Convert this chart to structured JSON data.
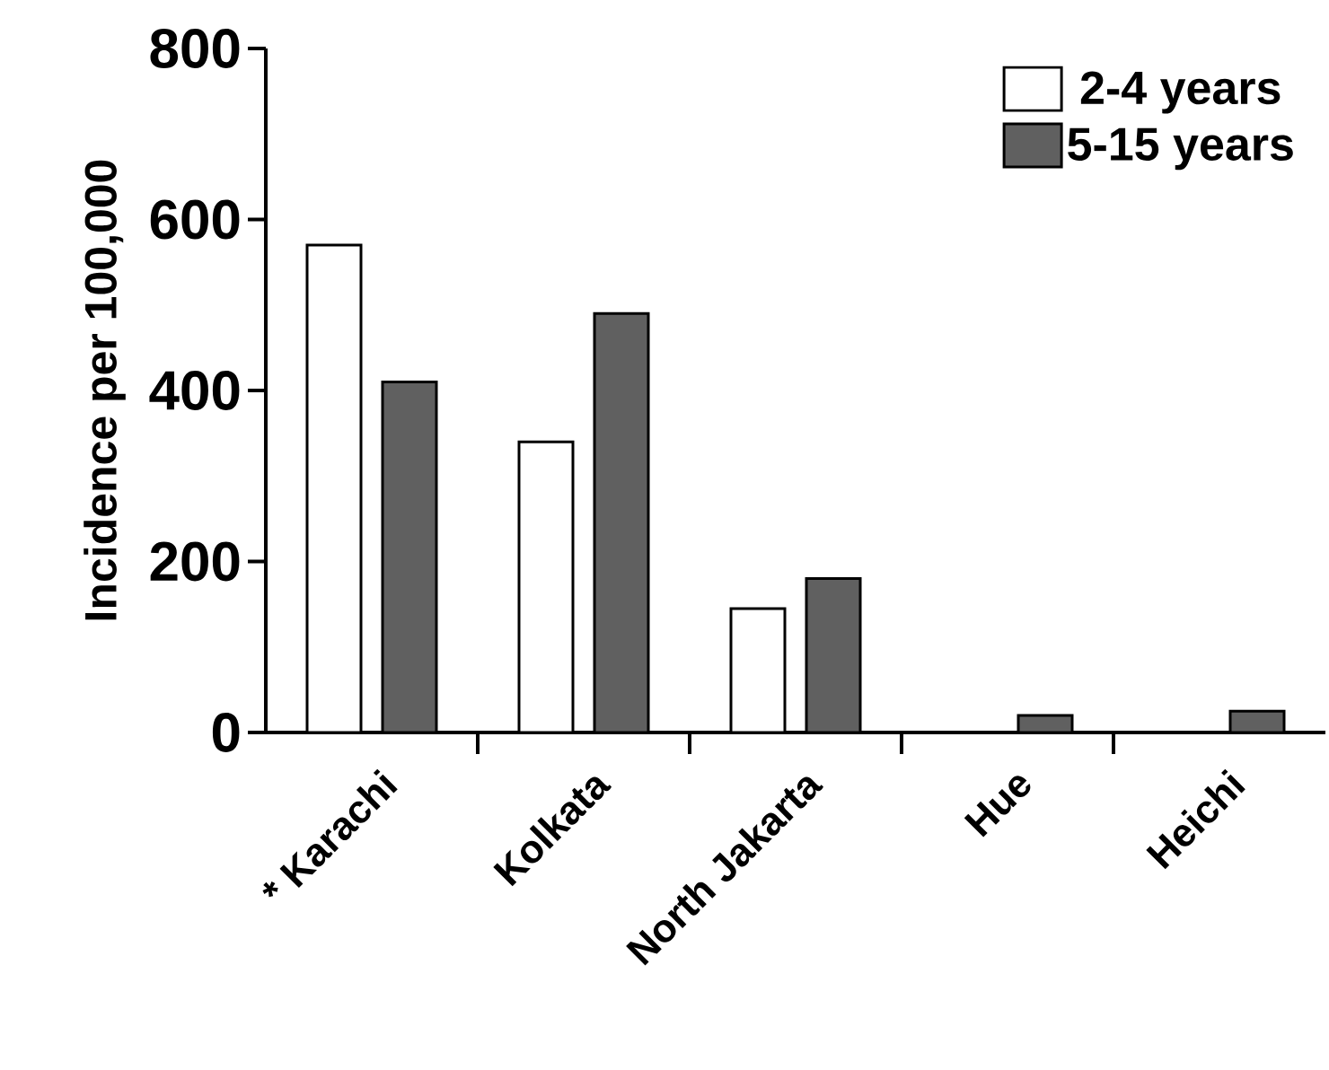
{
  "chart_data": {
    "type": "bar",
    "ylabel": "Incidence per 100,000",
    "categories": [
      "* Karachi",
      "Kolkata",
      "North Jakarta",
      "Hue",
      "Heichi"
    ],
    "series": [
      {
        "name": "2-4 years",
        "color": "#ffffff",
        "values": [
          570,
          340,
          145,
          null,
          null
        ]
      },
      {
        "name": "5-15 years",
        "color": "#606060",
        "values": [
          410,
          490,
          180,
          20,
          25
        ]
      }
    ],
    "ylim": [
      0,
      800
    ],
    "yticks": [
      0,
      200,
      400,
      600,
      800
    ],
    "legend": "top right"
  }
}
